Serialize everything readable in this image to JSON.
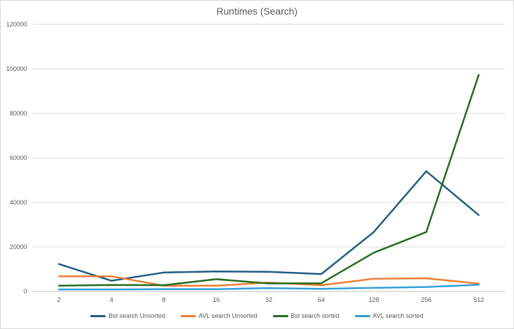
{
  "chart_data": {
    "type": "line",
    "title": "Runtimes (Search)",
    "xlabel": "",
    "ylabel": "",
    "categories": [
      "2",
      "4",
      "8",
      "16",
      "32",
      "64",
      "128",
      "256",
      "512"
    ],
    "yticks": [
      "0",
      "20000",
      "40000",
      "60000",
      "80000",
      "100000",
      "120000"
    ],
    "ylim": [
      0,
      120000
    ],
    "grid": true,
    "legend_position": "bottom",
    "series": [
      {
        "name": "Bst search Unsorted",
        "color": "#1f5c82",
        "values": [
          12300,
          4800,
          8500,
          9000,
          8800,
          7800,
          26700,
          54000,
          34300
        ]
      },
      {
        "name": "AVL search Unsorted",
        "color": "#ed7d31",
        "values": [
          6800,
          6800,
          2600,
          2600,
          4000,
          2800,
          5700,
          5900,
          3500
        ]
      },
      {
        "name": "Bst search sorted",
        "color": "#236b1f",
        "values": [
          2600,
          2900,
          2800,
          5500,
          3600,
          3700,
          17400,
          26700,
          97300
        ]
      },
      {
        "name": "AVL search sorted",
        "color": "#2e9fd8",
        "values": [
          900,
          900,
          1000,
          1000,
          1500,
          1200,
          1600,
          2000,
          3000
        ]
      }
    ]
  }
}
